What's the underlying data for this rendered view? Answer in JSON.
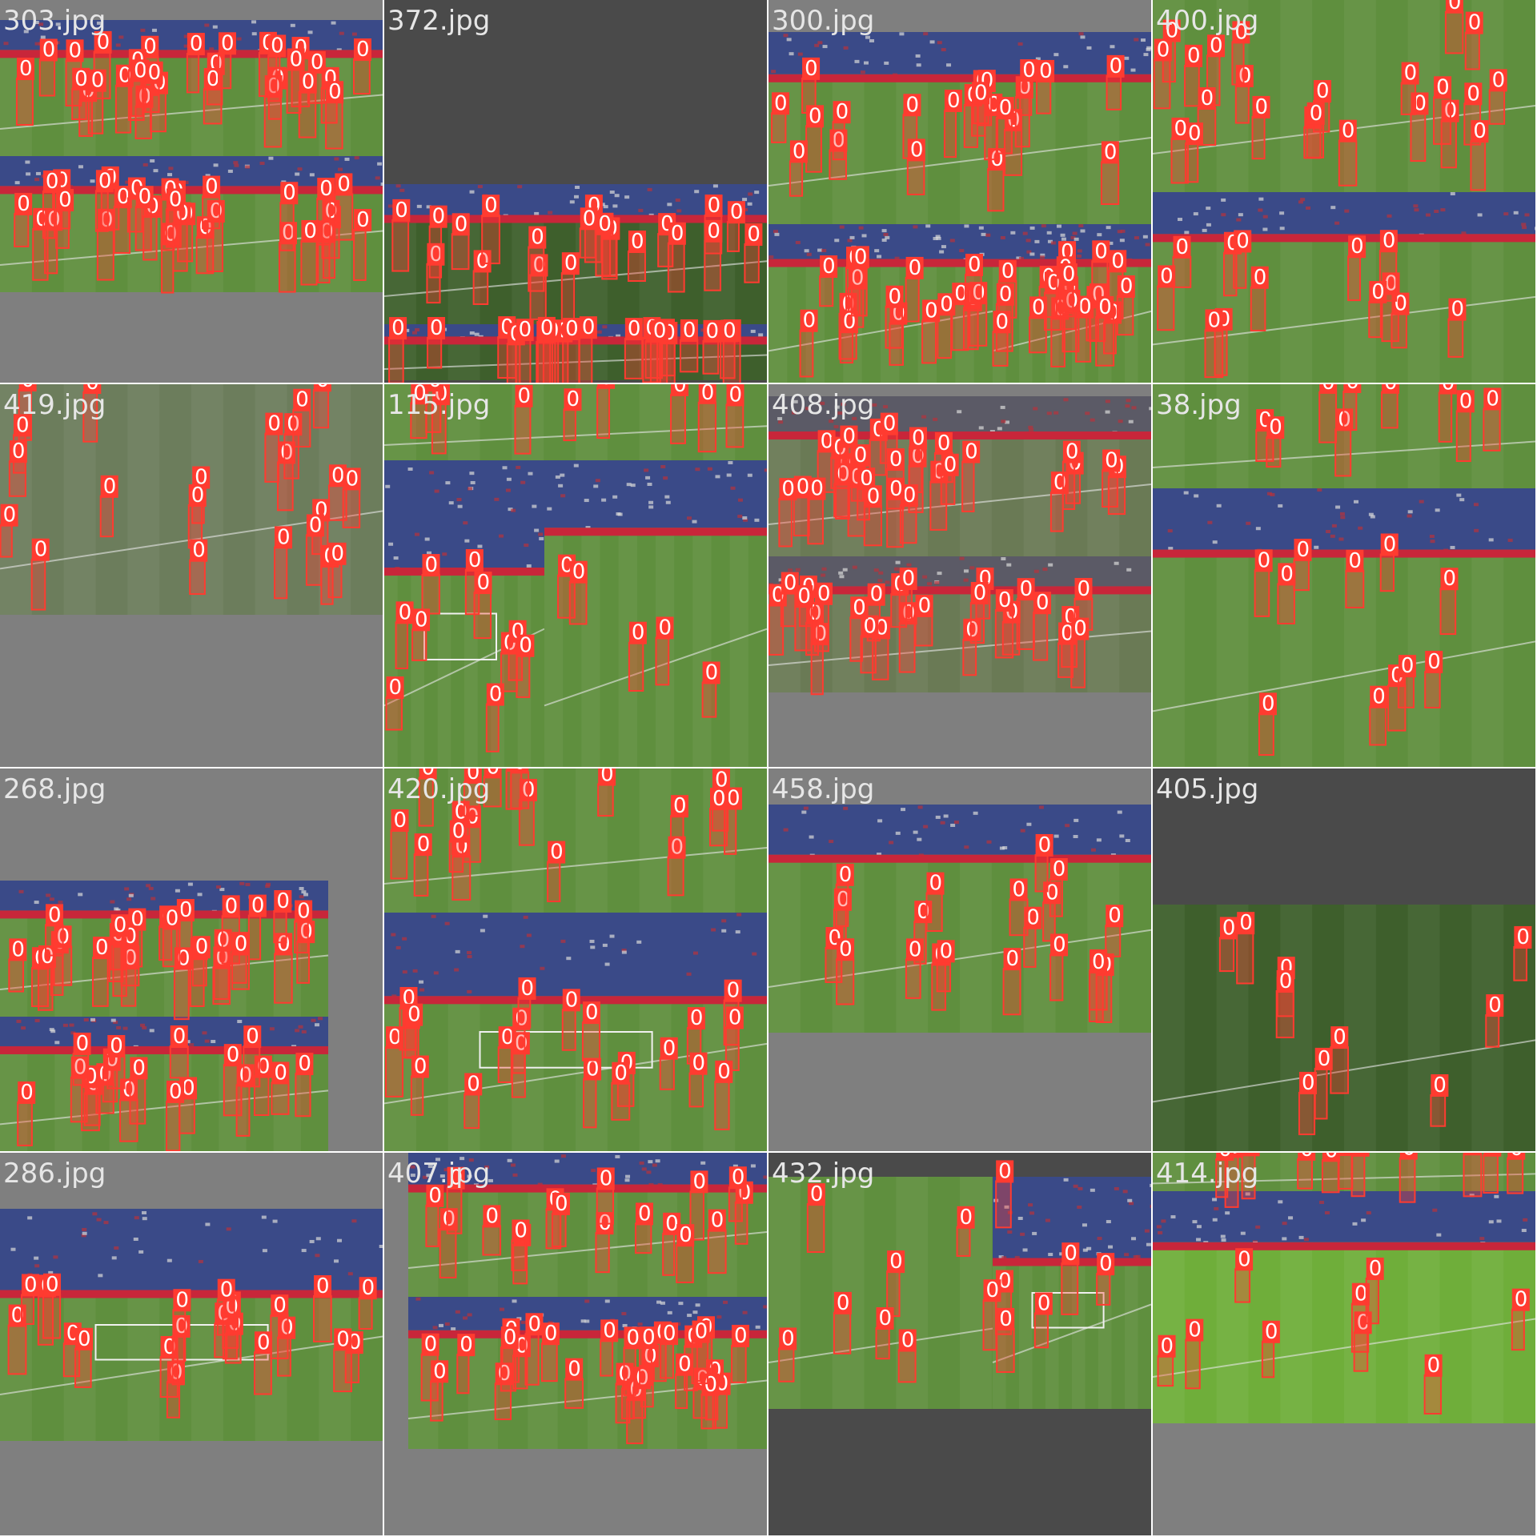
{
  "mosaic": {
    "box_color": "#ff3b30",
    "label_text_color": "#ffffff",
    "tiles": [
      {
        "title": "303.jpg",
        "background": "#7f7f7f",
        "scene": "split-stadium",
        "boxes": 60
      },
      {
        "title": "372.jpg",
        "background": "#4a4a4a",
        "scene": "dark-stadium",
        "boxes": 42
      },
      {
        "title": "300.jpg",
        "background": "#7f7f7f",
        "scene": "quad-stadium",
        "boxes": 58
      },
      {
        "title": "400.jpg",
        "background": "#7f7f7f",
        "scene": "field-with-stand",
        "boxes": 36
      },
      {
        "title": "419.jpg",
        "background": "#7f7f7f",
        "scene": "wide-field",
        "boxes": 22
      },
      {
        "title": "115.jpg",
        "background": "#7f7f7f",
        "scene": "goal-mouth",
        "boxes": 24
      },
      {
        "title": "408.jpg",
        "background": "#7f7f7f",
        "scene": "quad-stadium-gray",
        "boxes": 54
      },
      {
        "title": "38.jpg",
        "background": "#7f7f7f",
        "scene": "field-with-stand",
        "boxes": 20
      },
      {
        "title": "268.jpg",
        "background": "#7f7f7f",
        "scene": "split-stadium-narrow",
        "boxes": 48
      },
      {
        "title": "420.jpg",
        "background": "#7f7f7f",
        "scene": "field-goal-split",
        "boxes": 40
      },
      {
        "title": "458.jpg",
        "background": "#7f7f7f",
        "scene": "single-stadium",
        "boxes": 20
      },
      {
        "title": "405.jpg",
        "background": "#4a4a4a",
        "scene": "dark-field",
        "boxes": 10
      },
      {
        "title": "286.jpg",
        "background": "#7f7f7f",
        "scene": "goal-mouth-wide",
        "boxes": 22
      },
      {
        "title": "407.jpg",
        "background": "#7f7f7f",
        "scene": "split-stadium-inset",
        "boxes": 46
      },
      {
        "title": "432.jpg",
        "background": "#4a4a4a",
        "scene": "field-goal-split-dark",
        "boxes": 14
      },
      {
        "title": "414.jpg",
        "background": "#7f7f7f",
        "scene": "bright-field",
        "boxes": 20
      }
    ]
  }
}
